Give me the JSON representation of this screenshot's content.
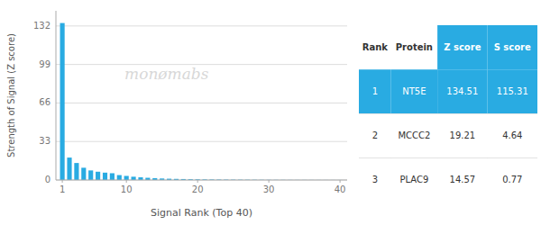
{
  "chart_data": {
    "type": "bar",
    "xlabel": "Signal Rank (Top 40)",
    "ylabel": "Strength of Signal (Z score)",
    "x": [
      1,
      2,
      3,
      4,
      5,
      6,
      7,
      8,
      9,
      10,
      11,
      12,
      13,
      14,
      15,
      16,
      17,
      18,
      19,
      20,
      21,
      22,
      23,
      24,
      25,
      26,
      27,
      28,
      29,
      30,
      31,
      32,
      33,
      34,
      35,
      36,
      37,
      38,
      39,
      40
    ],
    "values": [
      134.51,
      19.21,
      14.57,
      10.5,
      8.2,
      7.1,
      6.3,
      5.8,
      4.2,
      3.5,
      2.8,
      2.3,
      1.9,
      1.6,
      1.3,
      1.1,
      0.95,
      0.82,
      0.7,
      0.6,
      0.52,
      0.46,
      0.4,
      0.35,
      0.31,
      0.27,
      0.24,
      0.21,
      0.18,
      0.16,
      0.14,
      0.12,
      0.1,
      0.09,
      0.08,
      0.07,
      0.06,
      0.05,
      0.04,
      0.03
    ],
    "color": "#29ABE2",
    "xlim": [
      0.1,
      41
    ],
    "xticks": [
      1,
      10,
      20,
      30,
      40
    ],
    "ylim": [
      0,
      145
    ],
    "yticks": [
      0,
      33,
      66,
      99,
      132
    ],
    "grid": true,
    "annotations": [
      {
        "text": "monømabs",
        "color": "#d8d8d8"
      }
    ],
    "table": {
      "color": "#29ABE2",
      "columns": [
        "Rank",
        "Protein",
        "Z score",
        "S score"
      ],
      "rows": [
        [
          "1",
          "NT5E",
          "134.51",
          "115.31"
        ],
        [
          "2",
          "MCCC2",
          "19.21",
          "4.64"
        ],
        [
          "3",
          "PLAC9",
          "14.57",
          "0.77"
        ]
      ]
    }
  }
}
